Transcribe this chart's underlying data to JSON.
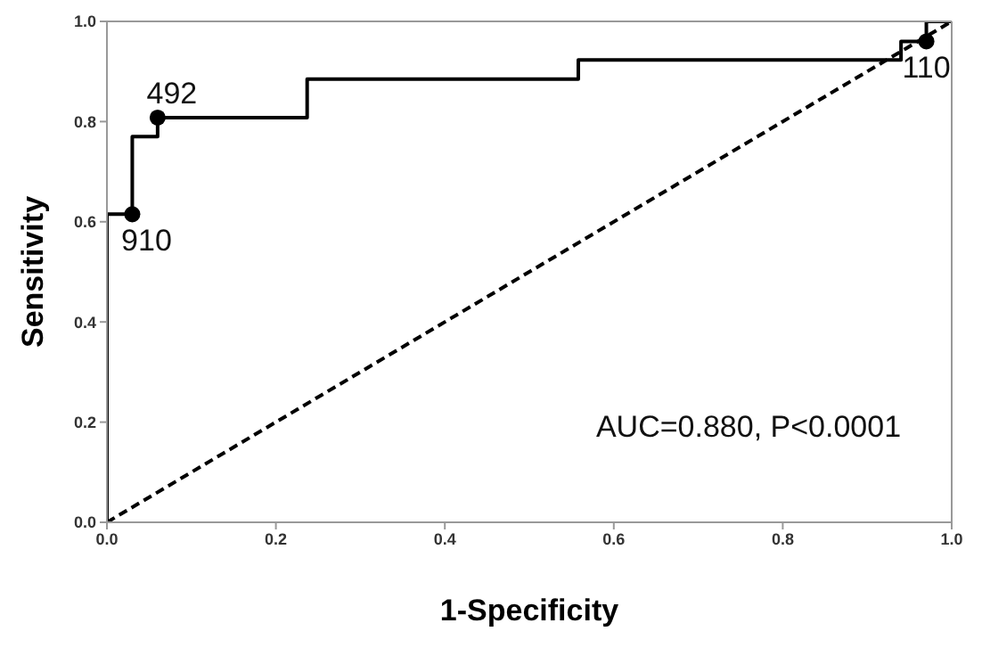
{
  "chart_data": {
    "type": "line",
    "xlabel": "1-Specificity",
    "ylabel": "Sensitivity",
    "xlim": [
      0,
      1
    ],
    "ylim": [
      0,
      1
    ],
    "xticks": [
      {
        "value": 0,
        "label": "0.0"
      },
      0.2,
      0.4,
      0.6,
      0.8,
      {
        "value": 1,
        "label": "1.0"
      }
    ],
    "yticks": [
      {
        "value": 0,
        "label": "0.0"
      },
      0.2,
      0.4,
      0.6,
      0.8,
      {
        "value": 1,
        "label": "1.0"
      }
    ],
    "grid": false,
    "series": [
      {
        "color": "#000000",
        "line_style": "solid",
        "marker": "none",
        "x": [
          0,
          0,
          0.03,
          0.03,
          0.06,
          0.06,
          0.237,
          0.237,
          0.558,
          0.558,
          0.94,
          0.94,
          0.97,
          0.97,
          1
        ],
        "values": [
          0,
          0.615,
          0.615,
          0.77,
          0.77,
          0.808,
          0.808,
          0.885,
          0.885,
          0.923,
          0.923,
          0.96,
          0.96,
          1,
          1
        ]
      },
      {
        "color": "#000000",
        "line_style": "dashed",
        "marker": "none",
        "x": [
          0,
          1
        ],
        "values": [
          0,
          1
        ]
      },
      {
        "type": "scatter",
        "color": "#000000",
        "marker": "circle",
        "x": [
          0.03,
          0.06,
          0.97
        ],
        "values": [
          0.615,
          0.808,
          0.96
        ]
      }
    ],
    "annotations": [
      {
        "text": "910",
        "x": 0.03,
        "y": 0.615
      },
      {
        "text": "492",
        "x": 0.06,
        "y": 0.808
      },
      {
        "text": "110",
        "x": 0.97,
        "y": 0.96
      },
      "AUC=0.880, P<0.0001"
    ]
  }
}
